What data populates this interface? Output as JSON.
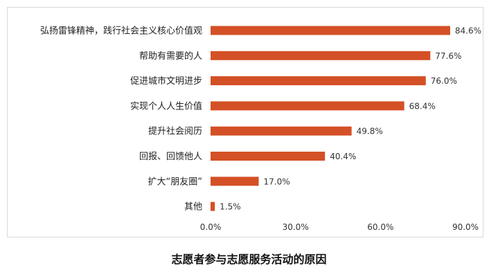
{
  "chart_data": {
    "type": "bar",
    "orientation": "horizontal",
    "title": "志愿者参与志愿服务活动的原因",
    "categories": [
      "弘扬雷锋精神，践行社会主义核心价值观",
      "帮助有需要的人",
      "促进城市文明进步",
      "实现个人人生价值",
      "提升社会阅历",
      "回报、回馈他人",
      "扩大“朋友圈”",
      "其他"
    ],
    "values": [
      84.6,
      77.6,
      76.0,
      68.4,
      49.8,
      40.4,
      17.0,
      1.5
    ],
    "value_labels": [
      "84.6%",
      "77.6%",
      "76.0%",
      "68.4%",
      "49.8%",
      "40.4%",
      "17.0%",
      "1.5%"
    ],
    "xlim": [
      0,
      90
    ],
    "x_ticks": [
      "0.0%",
      "30.0%",
      "60.0%",
      "90.0%"
    ],
    "x_tick_values": [
      0,
      30,
      60,
      90
    ],
    "bar_color": "#d45026",
    "grid": false,
    "legend": "none"
  }
}
